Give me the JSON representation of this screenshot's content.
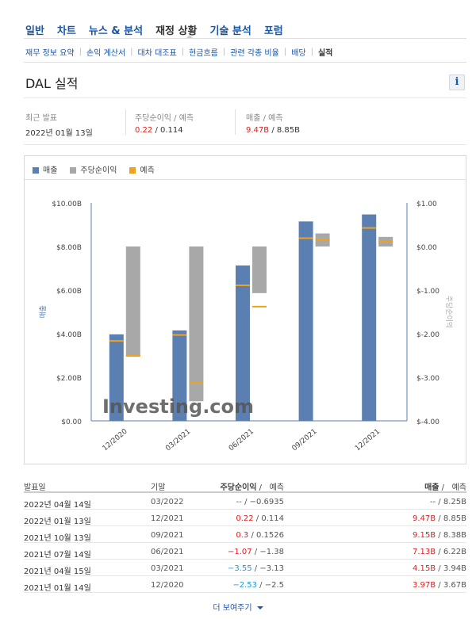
{
  "nav": {
    "main": [
      "일반",
      "차트",
      "뉴스 & 분석",
      "재정 상황",
      "기술 분석",
      "포럼"
    ],
    "active_main": 3,
    "sub": [
      "재무 정보 요약",
      "손익 계산서",
      "대차 대조표",
      "현금흐름",
      "관련 각종 비율",
      "배당",
      "실적"
    ],
    "active_sub": 6
  },
  "title": "DAL 실적",
  "info_icon": "i",
  "summary": {
    "latest_label": "최근 발표",
    "latest_date": "2022년 01월 13일",
    "eps_label": "주당순이익 / 예측",
    "eps_actual": "0.22",
    "eps_sep": " / ",
    "eps_forecast": "0.114",
    "rev_label": "매출 / 예측",
    "rev_actual": "9.47B",
    "rev_sep": " / ",
    "rev_forecast": "8.85B"
  },
  "legend": {
    "revenue": "매출",
    "eps": "주당순이익",
    "forecast": "예측"
  },
  "colors": {
    "revenue": "#5b7fb0",
    "eps": "#a8a8a8",
    "forecast": "#f0a21a",
    "red": "#e02020",
    "blue": "#1e9bd7"
  },
  "watermark": "Investing.com",
  "chart_data": {
    "type": "bar",
    "categories": [
      "12/2020",
      "03/2021",
      "06/2021",
      "09/2021",
      "12/2021"
    ],
    "series": [
      {
        "name": "매출",
        "axis": "left",
        "values": [
          3.97,
          4.15,
          7.13,
          9.15,
          9.47
        ],
        "forecast": [
          3.67,
          3.94,
          6.22,
          8.38,
          8.85
        ]
      },
      {
        "name": "주당순이익",
        "axis": "right",
        "values": [
          -2.53,
          -3.55,
          -1.07,
          0.3,
          0.22
        ],
        "forecast": [
          -2.5,
          -3.13,
          -1.38,
          0.1526,
          0.114
        ]
      }
    ],
    "left_ylabel": "매출",
    "right_ylabel": "주당순이익",
    "left_ylim": [
      0,
      10
    ],
    "right_ylim": [
      -4,
      1
    ],
    "left_ticks": [
      "$0.00",
      "$2.00B",
      "$4.00B",
      "$6.00B",
      "$8.00B",
      "$10.00B"
    ],
    "right_ticks": [
      "$-4.00",
      "$-3.00",
      "$-2.00",
      "$-1.00",
      "$0.00",
      "$1.00"
    ]
  },
  "table": {
    "headers": {
      "date": "발표일",
      "period": "기말",
      "eps": "주당순이익",
      "eps_fc": "예측",
      "rev": "매출",
      "rev_fc": "예측",
      "sep": " /"
    },
    "rows": [
      {
        "date": "2022년 04월 14일",
        "period": "03/2022",
        "eps": "--",
        "eps_color": "gray",
        "eps_fc": "−0.6935",
        "rev": "--",
        "rev_color": "gray",
        "rev_fc": "8.25B"
      },
      {
        "date": "2022년 01월 13일",
        "period": "12/2021",
        "eps": "0.22",
        "eps_color": "red",
        "eps_fc": "0.114",
        "rev": "9.47B",
        "rev_color": "red",
        "rev_fc": "8.85B"
      },
      {
        "date": "2021년 10월 13일",
        "period": "09/2021",
        "eps": "0.3",
        "eps_color": "red",
        "eps_fc": "0.1526",
        "rev": "9.15B",
        "rev_color": "red",
        "rev_fc": "8.38B"
      },
      {
        "date": "2021년 07월 14일",
        "period": "06/2021",
        "eps": "−1.07",
        "eps_color": "red",
        "eps_fc": "−1.38",
        "rev": "7.13B",
        "rev_color": "red",
        "rev_fc": "6.22B"
      },
      {
        "date": "2021년 04월 15일",
        "period": "03/2021",
        "eps": "−3.55",
        "eps_color": "blue",
        "eps_fc": "−3.13",
        "rev": "4.15B",
        "rev_color": "red",
        "rev_fc": "3.94B"
      },
      {
        "date": "2021년 01월 14일",
        "period": "12/2020",
        "eps": "−2.53",
        "eps_color": "blue",
        "eps_fc": "−2.5",
        "rev": "3.97B",
        "rev_color": "red",
        "rev_fc": "3.67B"
      }
    ]
  },
  "more": "더 보여주기"
}
